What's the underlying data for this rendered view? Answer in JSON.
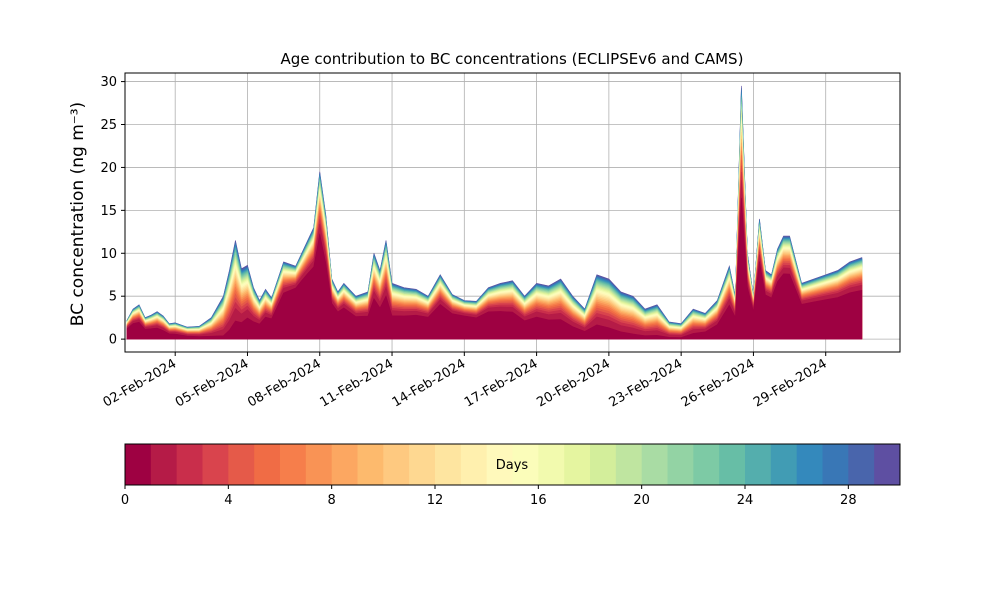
{
  "chart_data": {
    "type": "area",
    "title": "Age contribution to BC concentrations (ECLIPSEv6 and CAMS)",
    "xlabel": "",
    "ylabel": "BC concentration (ng m⁻³)",
    "ylim": [
      -1.5,
      31
    ],
    "xlim": [
      "2024-01-30T22:00",
      "2024-03-03T02:00"
    ],
    "grid": true,
    "y_ticks": [
      0,
      5,
      10,
      15,
      20,
      25,
      30
    ],
    "x_ticks": [
      "02-Feb-2024",
      "05-Feb-2024",
      "08-Feb-2024",
      "11-Feb-2024",
      "14-Feb-2024",
      "17-Feb-2024",
      "20-Feb-2024",
      "23-Feb-2024",
      "26-Feb-2024",
      "29-Feb-2024"
    ],
    "x_tick_dates": [
      "2024-02-02",
      "2024-02-05",
      "2024-02-08",
      "2024-02-11",
      "2024-02-14",
      "2024-02-17",
      "2024-02-20",
      "2024-02-23",
      "2024-02-26",
      "2024-02-29"
    ],
    "colorbar": {
      "label": "Days",
      "min": 0,
      "max": 30,
      "ticks": [
        0,
        4,
        8,
        12,
        16,
        20,
        24,
        28
      ],
      "colors": [
        "#9e0142",
        "#b51b47",
        "#c92e4b",
        "#d9444d",
        "#e55a49",
        "#f06c45",
        "#f67e4b",
        "#f99355",
        "#fca761",
        "#fdba6d",
        "#fec980",
        "#fed891",
        "#fee5a0",
        "#fff0ae",
        "#fff9bb",
        "#fbfdba",
        "#f2faae",
        "#e5f5a0",
        "#d3ee9b",
        "#bfe5a0",
        "#a9dca4",
        "#93d3a4",
        "#7dcaa5",
        "#67bea6",
        "#54aead",
        "#419cb4",
        "#3489bc",
        "#3977b6",
        "#4965ac",
        "#5e4fa2"
      ]
    },
    "age_fraction": {
      "dates": [
        "2024-01-31",
        "2024-02-04",
        "2024-02-07",
        "2024-02-11",
        "2024-02-14",
        "2024-02-21",
        "2024-02-23",
        "2024-02-26",
        "2024-03-01"
      ],
      "under_1_day": [
        0.55,
        0.08,
        0.7,
        0.42,
        0.6,
        0.12,
        0.1,
        0.65,
        0.6
      ]
    },
    "x": [
      "2024-01-31",
      "2024-01-31T06:00",
      "2024-01-31T12:00",
      "2024-01-31T18:00",
      "2024-02-01",
      "2024-02-01T06:00",
      "2024-02-01T12:00",
      "2024-02-01T18:00",
      "2024-02-02",
      "2024-02-02T12:00",
      "2024-02-03",
      "2024-02-03T12:00",
      "2024-02-04",
      "2024-02-04T06:00",
      "2024-02-04T12:00",
      "2024-02-04T18:00",
      "2024-02-05",
      "2024-02-05T06:00",
      "2024-02-05T12:00",
      "2024-02-05T18:00",
      "2024-02-06",
      "2024-02-06T12:00",
      "2024-02-07",
      "2024-02-07T06:00",
      "2024-02-07T12:00",
      "2024-02-07T18:00",
      "2024-02-08",
      "2024-02-08T06:00",
      "2024-02-08T12:00",
      "2024-02-08T18:00",
      "2024-02-09",
      "2024-02-09T12:00",
      "2024-02-10",
      "2024-02-10T06:00",
      "2024-02-10T12:00",
      "2024-02-10T18:00",
      "2024-02-11",
      "2024-02-11T12:00",
      "2024-02-12",
      "2024-02-12T12:00",
      "2024-02-13",
      "2024-02-13T12:00",
      "2024-02-14",
      "2024-02-14T12:00",
      "2024-02-15",
      "2024-02-15T12:00",
      "2024-02-16",
      "2024-02-16T12:00",
      "2024-02-17",
      "2024-02-17T12:00",
      "2024-02-18",
      "2024-02-18T12:00",
      "2024-02-19",
      "2024-02-19T12:00",
      "2024-02-20",
      "2024-02-20T12:00",
      "2024-02-21",
      "2024-02-21T12:00",
      "2024-02-22",
      "2024-02-22T12:00",
      "2024-02-23",
      "2024-02-23T12:00",
      "2024-02-24",
      "2024-02-24T12:00",
      "2024-02-25",
      "2024-02-25T06:00",
      "2024-02-25T12:00",
      "2024-02-25T18:00",
      "2024-02-26",
      "2024-02-26T06:00",
      "2024-02-26T12:00",
      "2024-02-26T18:00",
      "2024-02-27",
      "2024-02-27T06:00",
      "2024-02-27T12:00",
      "2024-02-28",
      "2024-02-28T12:00",
      "2024-02-29",
      "2024-02-29T12:00",
      "2024-03-01",
      "2024-03-01T12:00"
    ],
    "total": [
      2.2,
      3.5,
      4.0,
      2.5,
      2.8,
      3.2,
      2.7,
      1.8,
      1.9,
      1.4,
      1.5,
      2.5,
      5.0,
      8.0,
      11.5,
      8.2,
      8.6,
      6.0,
      4.5,
      5.8,
      4.8,
      9.0,
      8.5,
      10.0,
      11.5,
      13.0,
      19.5,
      14.5,
      7.0,
      5.5,
      6.5,
      5.0,
      5.5,
      10.0,
      8.0,
      11.5,
      6.5,
      6.0,
      5.8,
      5.0,
      7.5,
      5.2,
      4.5,
      4.4,
      6.0,
      6.5,
      6.8,
      5.0,
      6.5,
      6.2,
      7.0,
      5.0,
      3.5,
      7.5,
      7.0,
      5.5,
      5.0,
      3.5,
      4.0,
      2.0,
      1.8,
      3.5,
      3.0,
      4.5,
      8.5,
      5.0,
      29.5,
      10.0,
      5.0,
      14.0,
      8.0,
      7.5,
      10.5,
      12.0,
      12.0,
      6.5,
      7.0,
      7.5,
      8.0,
      9.0,
      9.5
    ],
    "series_summary": {
      "peak_value": 29.5,
      "peak_date": "2024-02-25T12:00"
    }
  }
}
